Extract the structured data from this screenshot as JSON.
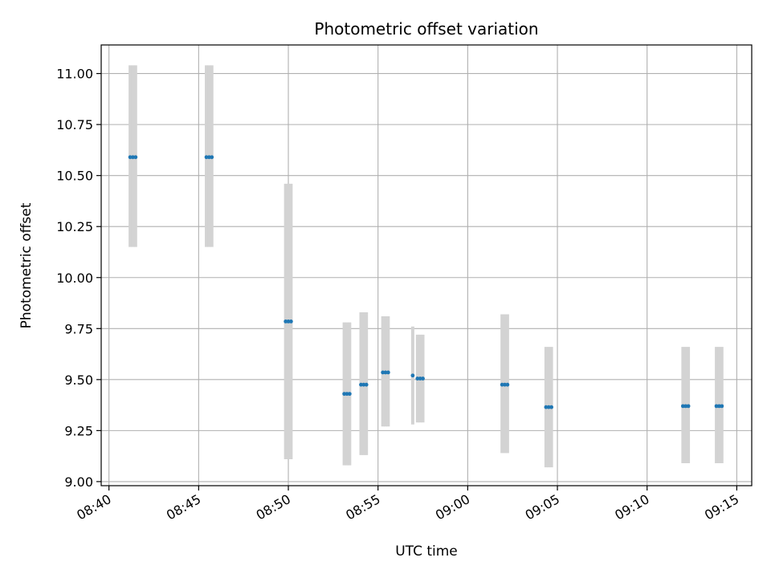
{
  "chart_data": {
    "type": "scatter",
    "title": "Photometric offset variation",
    "xlabel": "UTC time",
    "ylabel": "Photometric offset",
    "xlim": [
      "08:39:34",
      "09:15:50"
    ],
    "ylim": [
      8.98,
      11.14
    ],
    "xticks": [
      "08:40",
      "08:45",
      "08:50",
      "08:55",
      "09:00",
      "09:05",
      "09:10",
      "09:15"
    ],
    "yticks": [
      "9.00",
      "9.25",
      "9.50",
      "9.75",
      "10.00",
      "10.25",
      "10.50",
      "10.75",
      "11.00"
    ],
    "grid": true,
    "colors": {
      "points": "#1f77b4",
      "error_bars": "#d3d3d3",
      "grid": "#b0b0b0"
    },
    "points": [
      {
        "t": "08:41:11",
        "y": 10.59,
        "lo": 10.15,
        "hi": 11.04
      },
      {
        "t": "08:41:20",
        "y": 10.59,
        "lo": 10.15,
        "hi": 11.04
      },
      {
        "t": "08:41:29",
        "y": 10.59,
        "lo": 10.15,
        "hi": 11.04
      },
      {
        "t": "08:45:26",
        "y": 10.59,
        "lo": 10.15,
        "hi": 11.04
      },
      {
        "t": "08:45:35",
        "y": 10.59,
        "lo": 10.15,
        "hi": 11.04
      },
      {
        "t": "08:45:44",
        "y": 10.59,
        "lo": 10.15,
        "hi": 11.04
      },
      {
        "t": "08:49:51",
        "y": 9.785,
        "lo": 9.11,
        "hi": 10.46
      },
      {
        "t": "08:50:00",
        "y": 9.785,
        "lo": 9.11,
        "hi": 10.46
      },
      {
        "t": "08:50:09",
        "y": 9.785,
        "lo": 9.11,
        "hi": 10.46
      },
      {
        "t": "08:53:07",
        "y": 9.43,
        "lo": 9.08,
        "hi": 9.78
      },
      {
        "t": "08:53:16",
        "y": 9.43,
        "lo": 9.08,
        "hi": 9.78
      },
      {
        "t": "08:53:25",
        "y": 9.43,
        "lo": 9.08,
        "hi": 9.78
      },
      {
        "t": "08:54:03",
        "y": 9.475,
        "lo": 9.13,
        "hi": 9.83
      },
      {
        "t": "08:54:12",
        "y": 9.475,
        "lo": 9.13,
        "hi": 9.83
      },
      {
        "t": "08:54:21",
        "y": 9.475,
        "lo": 9.13,
        "hi": 9.83
      },
      {
        "t": "08:55:16",
        "y": 9.535,
        "lo": 9.27,
        "hi": 9.81
      },
      {
        "t": "08:55:25",
        "y": 9.535,
        "lo": 9.27,
        "hi": 9.81
      },
      {
        "t": "08:55:34",
        "y": 9.535,
        "lo": 9.27,
        "hi": 9.81
      },
      {
        "t": "08:56:56",
        "y": 9.52,
        "lo": 9.28,
        "hi": 9.76
      },
      {
        "t": "08:57:12",
        "y": 9.505,
        "lo": 9.29,
        "hi": 9.72
      },
      {
        "t": "08:57:21",
        "y": 9.505,
        "lo": 9.29,
        "hi": 9.72
      },
      {
        "t": "08:57:30",
        "y": 9.505,
        "lo": 9.29,
        "hi": 9.72
      },
      {
        "t": "09:01:55",
        "y": 9.475,
        "lo": 9.14,
        "hi": 9.82
      },
      {
        "t": "09:02:04",
        "y": 9.475,
        "lo": 9.14,
        "hi": 9.82
      },
      {
        "t": "09:02:13",
        "y": 9.475,
        "lo": 9.14,
        "hi": 9.82
      },
      {
        "t": "09:04:22",
        "y": 9.365,
        "lo": 9.07,
        "hi": 9.66
      },
      {
        "t": "09:04:31",
        "y": 9.365,
        "lo": 9.07,
        "hi": 9.66
      },
      {
        "t": "09:04:40",
        "y": 9.365,
        "lo": 9.07,
        "hi": 9.66
      },
      {
        "t": "09:12:00",
        "y": 9.37,
        "lo": 9.09,
        "hi": 9.66
      },
      {
        "t": "09:12:09",
        "y": 9.37,
        "lo": 9.09,
        "hi": 9.66
      },
      {
        "t": "09:12:18",
        "y": 9.37,
        "lo": 9.09,
        "hi": 9.66
      },
      {
        "t": "09:13:52",
        "y": 9.37,
        "lo": 9.09,
        "hi": 9.66
      },
      {
        "t": "09:14:01",
        "y": 9.37,
        "lo": 9.09,
        "hi": 9.66
      },
      {
        "t": "09:14:10",
        "y": 9.37,
        "lo": 9.09,
        "hi": 9.66
      }
    ]
  }
}
